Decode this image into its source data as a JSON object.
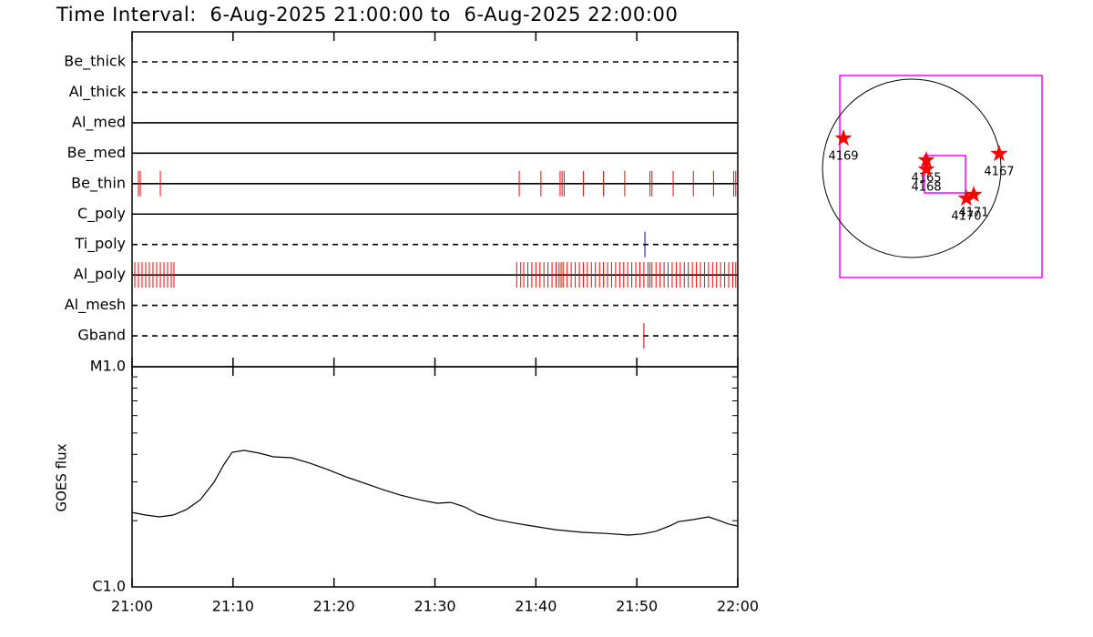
{
  "chart_data": [
    {
      "type": "events",
      "title": "Time Interval:  6-Aug-2025 21:00:00 to  6-Aug-2025 22:00:00",
      "xlim": [
        0,
        60
      ],
      "series": [
        {
          "name": "Be_thick",
          "style": "dashed",
          "color": "#ff0000",
          "values": []
        },
        {
          "name": "Al_thick",
          "style": "dashed",
          "color": "#ff0000",
          "values": []
        },
        {
          "name": "Al_med",
          "style": "solid",
          "color": "#ff0000",
          "values": []
        },
        {
          "name": "Be_med",
          "style": "solid",
          "color": "#ff0000",
          "values": []
        },
        {
          "name": "Be_thin",
          "style": "solid",
          "color": "#ff0000",
          "values": [
            0.63,
            0.81,
            2.8,
            38.35,
            40.5,
            42.4,
            42.6,
            42.8,
            44.7,
            46.7,
            48.8,
            51.3,
            51.5,
            53.6,
            55.6,
            57.6,
            59.6,
            59.8
          ]
        },
        {
          "name": "C_poly",
          "style": "solid",
          "color": "#ff0000",
          "values": []
        },
        {
          "name": "Ti_poly",
          "style": "dashed",
          "color": "#0000cc",
          "values": [
            50.8
          ]
        },
        {
          "name": "Al_poly",
          "style": "solid",
          "color": "#ff0000",
          "values": [
            0.27,
            0.63,
            0.99,
            1.35,
            1.71,
            2.07,
            2.44,
            2.8,
            3.16,
            3.52,
            3.88,
            4.15,
            38.1,
            38.5,
            38.8,
            39.2,
            39.6,
            40.0,
            40.4,
            40.8,
            41.2,
            41.6,
            42.0,
            42.3,
            42.5,
            42.7,
            43.1,
            43.5,
            43.9,
            44.3,
            44.7,
            45.1,
            45.5,
            45.9,
            46.3,
            46.7,
            47.1,
            47.5,
            47.9,
            48.3,
            48.7,
            49.1,
            49.5,
            49.9,
            50.3,
            50.7,
            51.1,
            51.3,
            51.5,
            51.9,
            52.3,
            52.7,
            53.1,
            53.5,
            53.9,
            54.3,
            54.7,
            55.1,
            55.5,
            55.9,
            56.3,
            56.7,
            57.1,
            57.5,
            57.9,
            58.3,
            58.7,
            59.1,
            59.5,
            59.8
          ]
        },
        {
          "name": "Al_mesh",
          "style": "dashed",
          "color": "#ff0000",
          "values": []
        },
        {
          "name": "Gband",
          "style": "dashed",
          "color": "#cc0000",
          "values": [
            50.7
          ]
        }
      ]
    },
    {
      "type": "line",
      "ylabel": "GOES flux",
      "log": true,
      "color": "#000000",
      "x": [
        0,
        1.35,
        2.71,
        4.06,
        5.41,
        6.77,
        8.12,
        9.02,
        9.92,
        11.1,
        12.63,
        13.99,
        15.79,
        17.6,
        19.4,
        21.2,
        23.01,
        24.81,
        26.62,
        28.42,
        30.22,
        31.58,
        32.93,
        34.29,
        36.09,
        37.89,
        39.7,
        41.95,
        44.66,
        46.92,
        49.17,
        50.53,
        51.88,
        53.23,
        54.14,
        55.49,
        57.11,
        58.2,
        59.1,
        60
      ],
      "values": [
        2.18e-06,
        2.12e-06,
        2.08e-06,
        2.12e-06,
        2.25e-06,
        2.49e-06,
        2.99e-06,
        3.55e-06,
        4.09e-06,
        4.17e-06,
        4.05e-06,
        3.9e-06,
        3.86e-06,
        3.65e-06,
        3.41e-06,
        3.16e-06,
        2.96e-06,
        2.77e-06,
        2.61e-06,
        2.49e-06,
        2.4e-06,
        2.42e-06,
        2.31e-06,
        2.14e-06,
        2.02e-06,
        1.95e-06,
        1.89e-06,
        1.82e-06,
        1.77e-06,
        1.75e-06,
        1.72e-06,
        1.74e-06,
        1.79e-06,
        1.89e-06,
        1.98e-06,
        2.02e-06,
        2.08e-06,
        2e-06,
        1.93e-06,
        1.89e-06
      ],
      "xlim": [
        0,
        60
      ],
      "xticks": [
        {
          "value": 0,
          "label": "21:00"
        },
        {
          "value": 10,
          "label": "21:10"
        },
        {
          "value": 20,
          "label": "21:20"
        },
        {
          "value": 30,
          "label": "21:30"
        },
        {
          "value": 40,
          "label": "21:40"
        },
        {
          "value": 50,
          "label": "21:50"
        },
        {
          "value": 60,
          "label": "22:00"
        }
      ],
      "ylim": [
        1e-06,
        1e-05
      ],
      "yticks": [
        {
          "value": 1e-06,
          "label": "C1.0"
        },
        {
          "value": 1e-05,
          "label": "M1.0"
        }
      ],
      "yminorticks": [
        2e-06,
        3e-06,
        4e-06,
        5e-06,
        6e-06,
        7e-06,
        8e-06,
        9e-06
      ]
    },
    {
      "type": "map",
      "xlim": [
        -766,
        1386
      ],
      "ylim": [
        -1163,
        988
      ],
      "radius": 950,
      "frame_color": "#ff00ff",
      "star_color": "#ff0000",
      "fov": {
        "x": [
          136,
          572
        ],
        "y": [
          -262,
          136
        ]
      },
      "labels": [
        "4169",
        "4165",
        "4168",
        "4167",
        "4170",
        "4171"
      ],
      "x": [
        -727,
        155,
        155,
        930,
        581,
        659
      ],
      "y": [
        320,
        87,
        -10,
        155,
        -320,
        -281
      ]
    }
  ]
}
